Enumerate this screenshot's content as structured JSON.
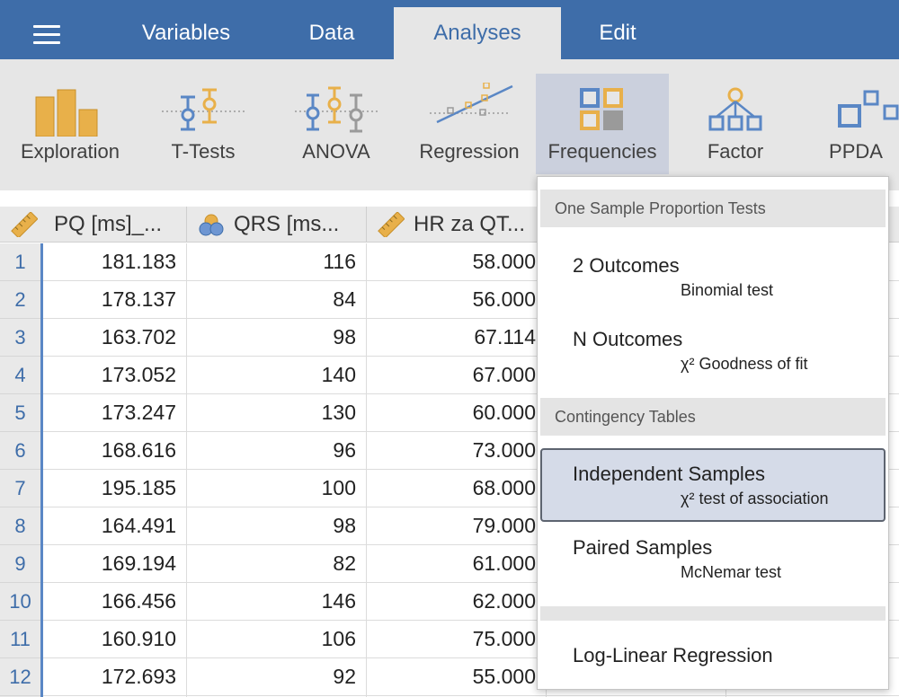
{
  "menubar": {
    "tabs": [
      "Variables",
      "Data",
      "Analyses",
      "Edit"
    ],
    "active_tab": "Analyses"
  },
  "ribbon": {
    "buttons": [
      "Exploration",
      "T-Tests",
      "ANOVA",
      "Regression",
      "Frequencies",
      "Factor",
      "PPDA"
    ],
    "active": "Frequencies"
  },
  "sheet": {
    "columns": [
      "PQ [ms]_...",
      "QRS [ms...",
      "HR za QT..."
    ],
    "column_icons": [
      "ruler-icon",
      "nominal-circles-icon",
      "ruler-icon"
    ],
    "rows": [
      {
        "num": "1",
        "c1": "181.183",
        "c2": "116",
        "c3": "58.000"
      },
      {
        "num": "2",
        "c1": "178.137",
        "c2": "84",
        "c3": "56.000"
      },
      {
        "num": "3",
        "c1": "163.702",
        "c2": "98",
        "c3": "67.114"
      },
      {
        "num": "4",
        "c1": "173.052",
        "c2": "140",
        "c3": "67.000"
      },
      {
        "num": "5",
        "c1": "173.247",
        "c2": "130",
        "c3": "60.000"
      },
      {
        "num": "6",
        "c1": "168.616",
        "c2": "96",
        "c3": "73.000"
      },
      {
        "num": "7",
        "c1": "195.185",
        "c2": "100",
        "c3": "68.000"
      },
      {
        "num": "8",
        "c1": "164.491",
        "c2": "98",
        "c3": "79.000"
      },
      {
        "num": "9",
        "c1": "169.194",
        "c2": "82",
        "c3": "61.000"
      },
      {
        "num": "10",
        "c1": "166.456",
        "c2": "146",
        "c3": "62.000"
      },
      {
        "num": "11",
        "c1": "160.910",
        "c2": "106",
        "c3": "75.000"
      },
      {
        "num": "12",
        "c1": "172.693",
        "c2": "92",
        "c3": "55.000"
      }
    ]
  },
  "dropdown": {
    "section1": "One Sample Proportion Tests",
    "two_outcomes": {
      "title": "2 Outcomes",
      "subtitle": "Binomial test"
    },
    "n_outcomes": {
      "title": "N Outcomes",
      "subtitle": "χ² Goodness of fit"
    },
    "section2": "Contingency Tables",
    "independent": {
      "title": "Independent Samples",
      "subtitle": "χ² test of association"
    },
    "paired": {
      "title": "Paired Samples",
      "subtitle": "McNemar test"
    },
    "loglinear": {
      "title": "Log-Linear Regression"
    }
  },
  "colors": {
    "menubar": "#3e6da9",
    "ribbon": "#e6e6e6",
    "icon_orange": "#e8b04a",
    "icon_blue": "#5a87c5",
    "selected_item": "#d5dbe8"
  }
}
